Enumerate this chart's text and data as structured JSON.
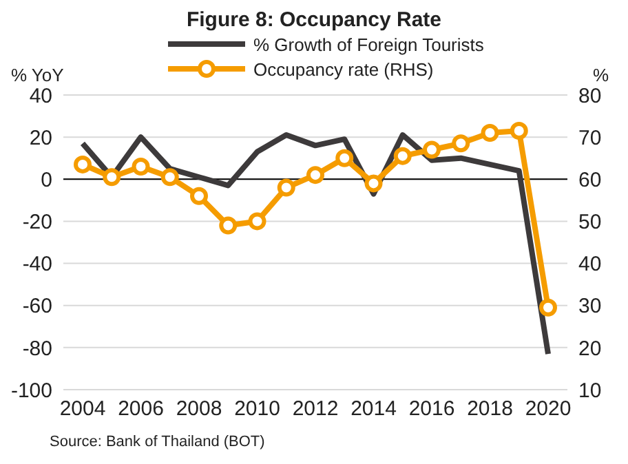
{
  "chart_data": {
    "type": "line",
    "title": "Figure 8: Occupancy Rate",
    "ylabel": "% YoY",
    "y2label": "%",
    "categories": [
      "2004",
      null,
      "2006",
      null,
      "2008",
      null,
      "2010",
      null,
      "2012",
      null,
      "2014",
      null,
      "2016",
      null,
      "2018",
      null,
      "2020"
    ],
    "series": [
      {
        "name": "% Growth of Foreign Tourists",
        "color": "#3d3a3b",
        "marker": "none",
        "values": [
          17,
          1,
          20,
          5,
          1,
          -3,
          13,
          21,
          16,
          19,
          -7,
          21,
          9,
          10,
          7,
          4,
          -83
        ]
      },
      {
        "name": "Occupancy rate (RHS)",
        "color": "#f59c00",
        "marker": "circle",
        "axis": "y2",
        "values": [
          63.5,
          60.5,
          63,
          60.5,
          56,
          49,
          50,
          58,
          61,
          65,
          59,
          65.5,
          67,
          68.5,
          71,
          71.5,
          29.5
        ]
      }
    ],
    "ylim": [
      -100,
      40
    ],
    "yticks": [
      -100,
      -80,
      -60,
      -40,
      -20,
      0,
      20,
      40
    ],
    "y2lim": [
      10,
      80
    ],
    "y2ticks": [
      10,
      20,
      30,
      40,
      50,
      60,
      70,
      80
    ],
    "ref_lines": [
      {
        "axis": "y",
        "value": 0,
        "color": "#000000"
      }
    ],
    "grid": "y",
    "legend": "top",
    "annotations": [
      "Source: Bank of Thailand (BOT)"
    ]
  }
}
